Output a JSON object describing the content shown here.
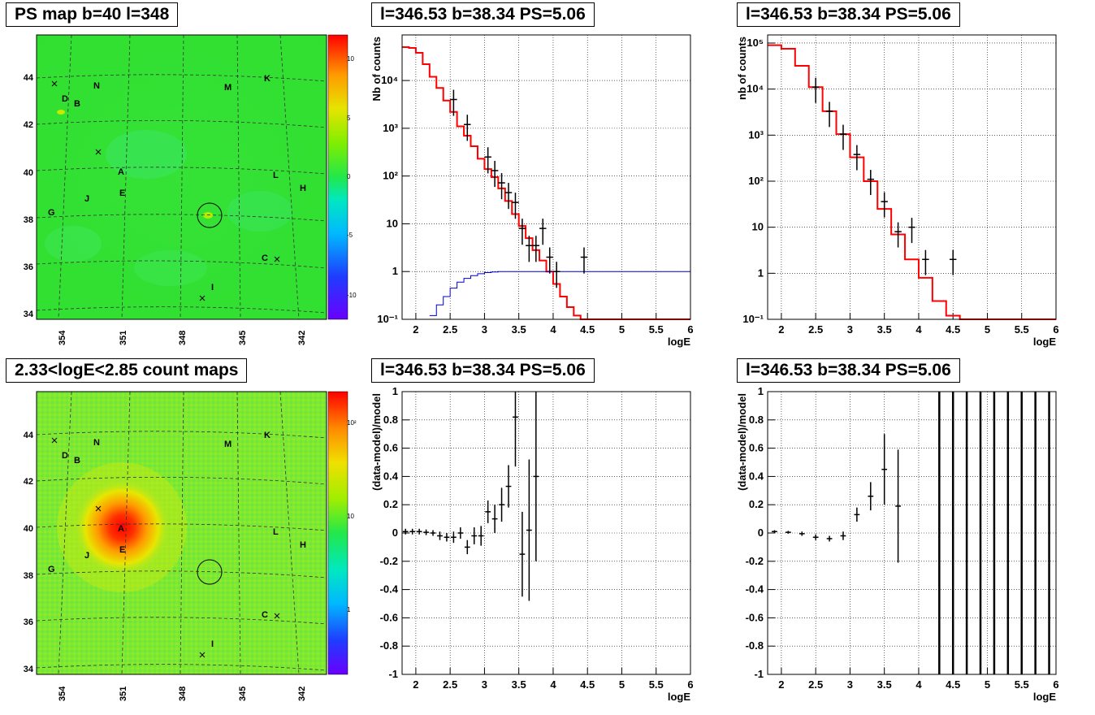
{
  "panels": {
    "ps_map": {
      "title": "PS map b=40 l=348",
      "y_ticks": [
        "34",
        "36",
        "38",
        "40",
        "42",
        "44"
      ],
      "x_ticks": [
        "354",
        "351",
        "348",
        "345",
        "342"
      ],
      "colorbar_ticks": [
        "10",
        "5",
        "0",
        "-5",
        "-10"
      ],
      "labels": [
        "N",
        "D",
        "B",
        "M",
        "K",
        "A",
        "E",
        "J",
        "G",
        "L",
        "H",
        "C",
        "I"
      ],
      "colors": {
        "background": "#33e233",
        "hot": "#ff0000",
        "cold": "#6a00ff"
      }
    },
    "count_map": {
      "title": "2.33<logE<2.85 count maps",
      "y_ticks": [
        "34",
        "36",
        "38",
        "40",
        "42",
        "44"
      ],
      "x_ticks": [
        "354",
        "351",
        "348",
        "345",
        "342"
      ],
      "colorbar_ticks": [
        "10²",
        "10",
        "1"
      ],
      "labels": [
        "N",
        "D",
        "B",
        "M",
        "K",
        "A",
        "E",
        "J",
        "G",
        "L",
        "H",
        "C",
        "I"
      ]
    },
    "counts1": {
      "title": "l=346.53 b=38.34 PS=5.06",
      "ylabel": "Nb of counts",
      "xlabel": "logE"
    },
    "counts2": {
      "title": "l=346.53 b=38.34 PS=5.06",
      "ylabel": "nb of counts",
      "xlabel": "logE"
    },
    "resid1": {
      "title": "l=346.53 b=38.34 PS=5.06",
      "ylabel": "(data-model)/model",
      "xlabel": "logE"
    },
    "resid2": {
      "title": "l=346.53 b=38.34 PS=5.06",
      "ylabel": "(data-model)/model",
      "xlabel": "logE"
    }
  },
  "chart_data": [
    {
      "type": "heatmap",
      "title": "PS map b=40 l=348",
      "xlabel": "",
      "ylabel": "",
      "x_ticks": [
        354,
        351,
        348,
        345,
        342
      ],
      "y_ticks": [
        34,
        36,
        38,
        40,
        42,
        44
      ],
      "colorbar_range": [
        -12,
        12
      ],
      "annotations": [
        "N",
        "D",
        "B",
        "M",
        "K",
        "A",
        "E",
        "J",
        "G",
        "L",
        "H",
        "C",
        "I"
      ]
    },
    {
      "type": "line",
      "title": "l=346.53 b=38.34 PS=5.06",
      "xlabel": "logE",
      "ylabel": "Nb of counts",
      "xlim": [
        1.8,
        6
      ],
      "ylim": [
        0.1,
        90000
      ],
      "yscale": "log",
      "x_ticks": [
        2,
        2.5,
        3,
        3.5,
        4,
        4.5,
        5,
        5.5,
        6
      ],
      "y_ticks": [
        "10⁻¹",
        "1",
        "10",
        "10²",
        "10³",
        "10⁴"
      ],
      "grid": true,
      "series": [
        {
          "color": "#ff0000",
          "edges": [
            1.8,
            1.9,
            2.0,
            2.1,
            2.2,
            2.3,
            2.4,
            2.5,
            2.6,
            2.7,
            2.8,
            2.9,
            3.0,
            3.1,
            3.2,
            3.3,
            3.4,
            3.5,
            3.6,
            3.7,
            3.8,
            3.9,
            4.0,
            4.1,
            4.2,
            4.3,
            4.4,
            6.0
          ],
          "values": [
            50000,
            48000,
            38000,
            22000,
            12000,
            7000,
            3800,
            2200,
            1100,
            700,
            420,
            230,
            140,
            95,
            55,
            30,
            16,
            9,
            5,
            2.8,
            1.7,
            1.0,
            0.55,
            0.3,
            0.18,
            0.12,
            0.1
          ]
        },
        {
          "color": "#0000cc",
          "edges": [
            2.2,
            2.3,
            2.4,
            2.5,
            2.6,
            2.7,
            2.8,
            2.9,
            3.0,
            3.1,
            3.2,
            6.0
          ],
          "values": [
            0.12,
            0.2,
            0.3,
            0.45,
            0.6,
            0.72,
            0.82,
            0.9,
            0.95,
            0.98,
            1.0
          ]
        },
        {
          "color": "#000000",
          "x": [
            2.55,
            2.75,
            3.05,
            3.15,
            3.25,
            3.35,
            3.45,
            3.55,
            3.65,
            3.75,
            3.85,
            3.95,
            4.05,
            4.45
          ],
          "y": [
            4000,
            1200,
            250,
            130,
            72,
            45,
            28,
            8,
            3.5,
            3.5,
            8,
            2,
            1,
            2
          ]
        }
      ]
    },
    {
      "type": "line",
      "title": "l=346.53 b=38.34 PS=5.06",
      "xlabel": "logE",
      "ylabel": "nb of counts",
      "xlim": [
        1.8,
        6
      ],
      "ylim": [
        0.1,
        150000
      ],
      "yscale": "log",
      "x_ticks": [
        2,
        2.5,
        3,
        3.5,
        4,
        4.5,
        5,
        5.5,
        6
      ],
      "y_ticks": [
        "10⁻¹",
        "1",
        "10",
        "10²",
        "10³",
        "10⁴",
        "10⁵"
      ],
      "grid": true,
      "series": [
        {
          "color": "#ff0000",
          "edges": [
            1.8,
            2.0,
            2.2,
            2.4,
            2.6,
            2.8,
            3.0,
            3.2,
            3.4,
            3.6,
            3.8,
            4.0,
            4.2,
            4.4,
            4.6,
            6.0
          ],
          "values": [
            90000,
            75000,
            32000,
            11000,
            3300,
            1050,
            330,
            100,
            25,
            7,
            2,
            0.8,
            0.25,
            0.12,
            0.1
          ]
        },
        {
          "color": "#000000",
          "x": [
            2.5,
            2.7,
            2.9,
            3.1,
            3.3,
            3.5,
            3.7,
            3.9,
            4.1,
            4.5
          ],
          "y": [
            11000,
            3300,
            1050,
            380,
            110,
            36,
            8,
            10,
            2,
            2
          ]
        }
      ]
    },
    {
      "type": "heatmap",
      "title": "2.33<logE<2.85 count maps",
      "xlabel": "",
      "ylabel": "",
      "x_ticks": [
        354,
        351,
        348,
        345,
        342
      ],
      "y_ticks": [
        34,
        36,
        38,
        40,
        42,
        44
      ],
      "annotations": [
        "N",
        "D",
        "B",
        "M",
        "K",
        "A",
        "E",
        "J",
        "G",
        "L",
        "H",
        "C",
        "I"
      ]
    },
    {
      "type": "scatter",
      "title": "l=346.53 b=38.34 PS=5.06",
      "xlabel": "logE",
      "ylabel": "(data-model)/model",
      "xlim": [
        1.8,
        6
      ],
      "ylim": [
        -1,
        1
      ],
      "x_ticks": [
        2,
        2.5,
        3,
        3.5,
        4,
        4.5,
        5,
        5.5,
        6
      ],
      "y_ticks": [
        -1,
        -0.8,
        -0.6,
        -0.4,
        -0.2,
        0,
        0.2,
        0.4,
        0.6,
        0.8,
        1
      ],
      "grid": true,
      "series": [
        {
          "color": "#000000",
          "x": [
            1.85,
            1.95,
            2.05,
            2.15,
            2.25,
            2.35,
            2.45,
            2.55,
            2.65,
            2.75,
            2.85,
            2.95,
            3.05,
            3.15,
            3.25,
            3.35,
            3.45,
            3.55,
            3.65,
            3.75
          ],
          "y": [
            0.01,
            0.01,
            0.01,
            0.005,
            0.0,
            -0.02,
            -0.03,
            -0.03,
            0.0,
            -0.1,
            -0.02,
            -0.02,
            0.15,
            0.1,
            0.2,
            0.33,
            0.82,
            -0.15,
            0.02,
            0.4
          ],
          "err": [
            0.02,
            0.02,
            0.02,
            0.02,
            0.02,
            0.03,
            0.03,
            0.04,
            0.04,
            0.05,
            0.06,
            0.07,
            0.08,
            0.1,
            0.12,
            0.15,
            0.35,
            0.3,
            0.5,
            0.6
          ]
        }
      ]
    },
    {
      "type": "scatter",
      "title": "l=346.53 b=38.34 PS=5.06",
      "xlabel": "logE",
      "ylabel": "(data-model)/model",
      "xlim": [
        1.8,
        6
      ],
      "ylim": [
        -1,
        1
      ],
      "x_ticks": [
        2,
        2.5,
        3,
        3.5,
        4,
        4.5,
        5,
        5.5,
        6
      ],
      "y_ticks": [
        -1,
        -0.8,
        -0.6,
        -0.4,
        -0.2,
        0,
        0.2,
        0.4,
        0.6,
        0.8,
        1
      ],
      "grid": true,
      "series": [
        {
          "color": "#000000",
          "x": [
            1.9,
            2.1,
            2.3,
            2.5,
            2.7,
            2.9,
            3.1,
            3.3,
            3.5,
            3.7
          ],
          "y": [
            0.01,
            0.005,
            -0.005,
            -0.03,
            -0.04,
            -0.02,
            0.13,
            0.26,
            0.45,
            0.19
          ],
          "err": [
            0.01,
            0.01,
            0.015,
            0.02,
            0.02,
            0.03,
            0.05,
            0.1,
            0.25,
            0.4
          ]
        },
        {
          "color": "#000000",
          "x": [
            4.3,
            4.5,
            4.7,
            4.9,
            5.1,
            5.3,
            5.5,
            5.7,
            5.9
          ],
          "note_y_out_of_range": true
        }
      ]
    }
  ]
}
